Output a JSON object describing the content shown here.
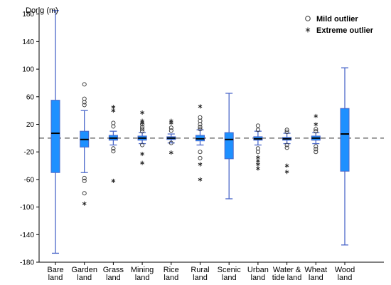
{
  "chart_data": {
    "type": "box",
    "ylabel": "Dorig (m)",
    "ylim": [
      -180,
      190
    ],
    "yticks": [
      180,
      140,
      100,
      60,
      20,
      -20,
      -60,
      -100,
      -140,
      -180
    ],
    "reference_line": 0,
    "colors": {
      "box": "#1E90FF",
      "whisker": "#4A67C9",
      "median": "#000000",
      "refline": "#555555"
    },
    "legend": {
      "position": "top-right",
      "entries": [
        {
          "symbol": "circle",
          "label": "Mild outlier"
        },
        {
          "symbol": "star",
          "label": "Extreme outlier"
        }
      ]
    },
    "categories": [
      {
        "label": [
          "Bare",
          "land"
        ],
        "min": -167,
        "q1": -50,
        "median": 7,
        "q3": 55,
        "max": 185,
        "mild": [],
        "extreme": []
      },
      {
        "label": [
          "Garden",
          "land"
        ],
        "min": -50,
        "q1": -13,
        "median": -2,
        "q3": 10,
        "max": 40,
        "mild": [
          78,
          57,
          52,
          48,
          -58,
          -62,
          -80
        ],
        "extreme": [
          -95
        ]
      },
      {
        "label": [
          "Grass",
          "land"
        ],
        "min": -10,
        "q1": -3,
        "median": 0,
        "q3": 4,
        "max": 10,
        "mild": [
          22,
          17,
          -15,
          -19
        ],
        "extreme": [
          45,
          40,
          -62
        ]
      },
      {
        "label": [
          "Mining",
          "land"
        ],
        "min": -8,
        "q1": -3,
        "median": 0,
        "q3": 3,
        "max": 8,
        "mild": [
          20,
          16,
          13,
          10,
          -10
        ],
        "extreme": [
          37,
          25,
          22,
          -23,
          -36
        ]
      },
      {
        "label": [
          "Rice",
          "land"
        ],
        "min": -7,
        "q1": -2,
        "median": 0,
        "q3": 2,
        "max": 6,
        "mild": [
          15,
          11,
          -7
        ],
        "extreme": [
          25,
          22,
          -21
        ]
      },
      {
        "label": [
          "Rural",
          "land"
        ],
        "min": -10,
        "q1": -4,
        "median": -1,
        "q3": 4,
        "max": 12,
        "mild": [
          30,
          25,
          20,
          16,
          13,
          -20,
          -29
        ],
        "extreme": [
          46,
          -38,
          -60
        ]
      },
      {
        "label": [
          "Scenic",
          "land"
        ],
        "min": -88,
        "q1": -30,
        "median": -2,
        "q3": 8,
        "max": 65,
        "mild": [],
        "extreme": []
      },
      {
        "label": [
          "Urban",
          "land"
        ],
        "min": -10,
        "q1": -3,
        "median": -1,
        "q3": 2,
        "max": 10,
        "mild": [
          18,
          12,
          -15,
          -20
        ],
        "extreme": [
          -28,
          -33,
          -38,
          -44
        ]
      },
      {
        "label": [
          "Water &",
          "tide land"
        ],
        "min": -8,
        "q1": -3,
        "median": -1,
        "q3": 1,
        "max": 7,
        "mild": [
          12,
          9,
          -10,
          -14
        ],
        "extreme": [
          -40,
          -49
        ]
      },
      {
        "label": [
          "Wheat",
          "land"
        ],
        "min": -8,
        "q1": -3,
        "median": 0,
        "q3": 3,
        "max": 8,
        "mild": [
          13,
          10,
          -12,
          -16,
          -20
        ],
        "extreme": [
          32,
          20
        ]
      },
      {
        "label": [
          "Wood",
          "land"
        ],
        "min": -155,
        "q1": -48,
        "median": 6,
        "q3": 43,
        "max": 102,
        "mild": [],
        "extreme": []
      }
    ]
  }
}
